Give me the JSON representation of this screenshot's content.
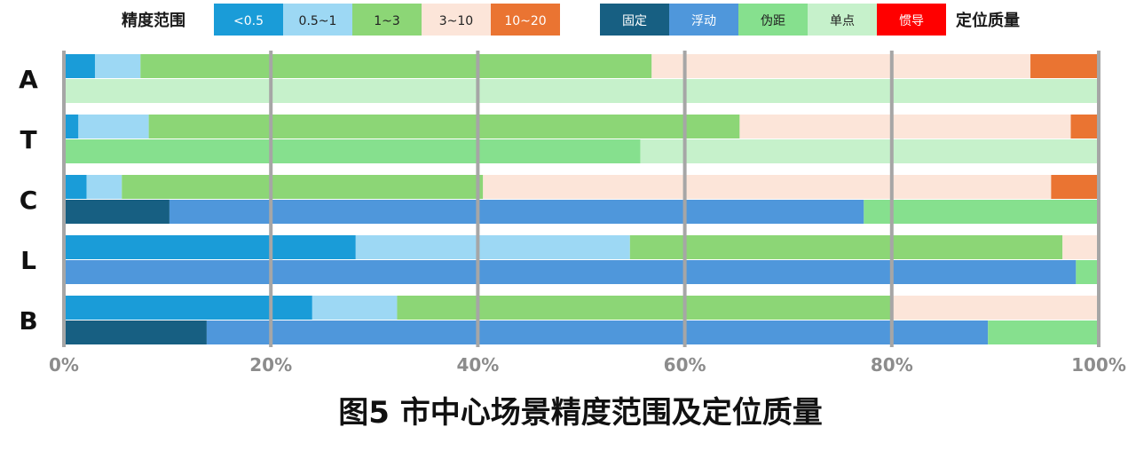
{
  "chart_data": {
    "type": "bar",
    "orientation": "horizontal",
    "stacked": true,
    "percent": true,
    "caption": "图5 市中心场景精度范围及定位质量",
    "categories": [
      "A",
      "T",
      "C",
      "L",
      "B"
    ],
    "xlim": [
      0,
      100
    ],
    "x_ticks": [
      "0%",
      "20%",
      "40%",
      "60%",
      "80%",
      "100%"
    ],
    "grid": true,
    "legend_placement": "top",
    "precision_legend": {
      "title": "精度范围",
      "items": [
        {
          "name": "<0.5",
          "color": "#1a9cd8",
          "text_color": "#ffffff"
        },
        {
          "name": "0.5~1",
          "color": "#9dd8f4",
          "text_color": "#222222"
        },
        {
          "name": "1~3",
          "color": "#8cd676",
          "text_color": "#222222"
        },
        {
          "name": "3~10",
          "color": "#fce5d9",
          "text_color": "#222222"
        },
        {
          "name": "10~20",
          "color": "#ea7432",
          "text_color": "#ffffff"
        }
      ]
    },
    "quality_legend": {
      "title": "定位质量",
      "items": [
        {
          "name": "固定",
          "color": "#175f82",
          "text_color": "#ffffff"
        },
        {
          "name": "浮动",
          "color": "#4f97db",
          "text_color": "#ffffff"
        },
        {
          "name": "伪距",
          "color": "#86e08e",
          "text_color": "#222222"
        },
        {
          "name": "单点",
          "color": "#c6f1cb",
          "text_color": "#222222"
        },
        {
          "name": "惯导",
          "color": "#ff0000",
          "text_color": "#ffffff"
        }
      ]
    },
    "precision_series": [
      {
        "name": "<0.5",
        "values": [
          3,
          1.4,
          2.2,
          28.2,
          24
        ]
      },
      {
        "name": "0.5~1",
        "values": [
          4.4,
          6.8,
          3.4,
          26.5,
          8.2
        ]
      },
      {
        "name": "1~3",
        "values": [
          49.4,
          57.1,
          34.9,
          41.8,
          47.9
        ]
      },
      {
        "name": "3~10",
        "values": [
          36.6,
          32,
          54.9,
          3.5,
          19.9
        ]
      },
      {
        "name": "10~20",
        "values": [
          6.6,
          2.7,
          4.6,
          0,
          0
        ]
      }
    ],
    "quality_series": [
      {
        "name": "固定",
        "values": [
          0,
          0,
          10.2,
          0,
          13.8
        ]
      },
      {
        "name": "浮动",
        "values": [
          0,
          0,
          67.1,
          97.8,
          75.5
        ]
      },
      {
        "name": "伪距",
        "values": [
          0,
          55.7,
          22.7,
          2.2,
          10.7
        ]
      },
      {
        "name": "单点",
        "values": [
          100,
          44.3,
          0,
          0,
          0
        ]
      },
      {
        "name": "惯导",
        "values": [
          0,
          0,
          0,
          0,
          0
        ]
      }
    ]
  }
}
